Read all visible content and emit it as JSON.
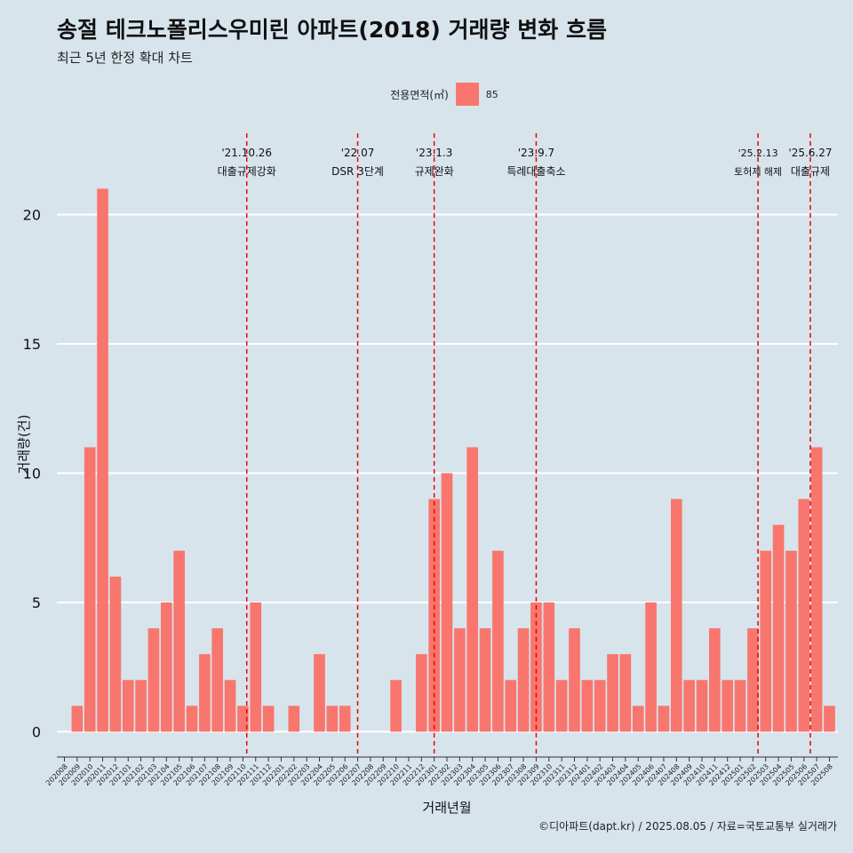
{
  "title": "송절 테크노폴리스우미린 아파트(2018) 거래량 변화 흐름",
  "subtitle": "최근 5년 한정 확대 차트",
  "caption": "©디아파트(dapt.kr) / 2025.08.05 / 자료=국토교통부 실거래가",
  "legend": {
    "title": "전용면적(㎡)",
    "label": "85",
    "color": "#f8766d"
  },
  "chart_data": {
    "type": "bar",
    "xlabel": "거래년월",
    "ylabel": "거래량(건)",
    "ylim": [
      0,
      21
    ],
    "yticks": [
      0,
      5,
      10,
      15,
      20
    ],
    "grid": true,
    "legend_position": "top",
    "categories": [
      "202008",
      "202009",
      "202010",
      "202011",
      "202012",
      "202101",
      "202102",
      "202103",
      "202104",
      "202105",
      "202106",
      "202107",
      "202108",
      "202109",
      "202110",
      "202111",
      "202112",
      "202201",
      "202202",
      "202203",
      "202204",
      "202205",
      "202206",
      "202207",
      "202208",
      "202209",
      "202210",
      "202211",
      "202212",
      "202301",
      "202302",
      "202303",
      "202304",
      "202305",
      "202306",
      "202307",
      "202308",
      "202309",
      "202310",
      "202311",
      "202312",
      "202401",
      "202402",
      "202403",
      "202404",
      "202405",
      "202406",
      "202407",
      "202408",
      "202409",
      "202410",
      "202411",
      "202412",
      "202501",
      "202502",
      "202503",
      "202504",
      "202505",
      "202506",
      "202507",
      "202508"
    ],
    "series": [
      {
        "name": "85",
        "values": [
          0,
          1,
          11,
          21,
          6,
          2,
          2,
          4,
          5,
          7,
          1,
          3,
          4,
          2,
          1,
          5,
          1,
          0,
          1,
          0,
          3,
          1,
          1,
          0,
          0,
          0,
          2,
          0,
          3,
          9,
          10,
          4,
          11,
          4,
          7,
          2,
          4,
          5,
          5,
          2,
          4,
          2,
          2,
          3,
          3,
          1,
          5,
          1,
          9,
          2,
          2,
          4,
          2,
          2,
          4,
          7,
          8,
          7,
          9,
          11,
          1
        ]
      }
    ],
    "annotations": [
      {
        "date": "'21.10.26",
        "label": "대출규제강화",
        "x": "202110",
        "offset": 0.3
      },
      {
        "date": "'22.07",
        "label": "DSR 3단계",
        "x": "202207",
        "offset": 0.0
      },
      {
        "date": "'23.1.3",
        "label": "규제완화",
        "x": "202301",
        "offset": 0.0
      },
      {
        "date": "'23.9.7",
        "label": "특례대출축소",
        "x": "202309",
        "offset": 0.0
      },
      {
        "date": "'25.2.13",
        "label": "토허제 해제",
        "x": "202502",
        "offset": 0.4
      },
      {
        "date": "'25.6.27",
        "label": "대출규제",
        "x": "202506",
        "offset": 0.5
      }
    ]
  }
}
